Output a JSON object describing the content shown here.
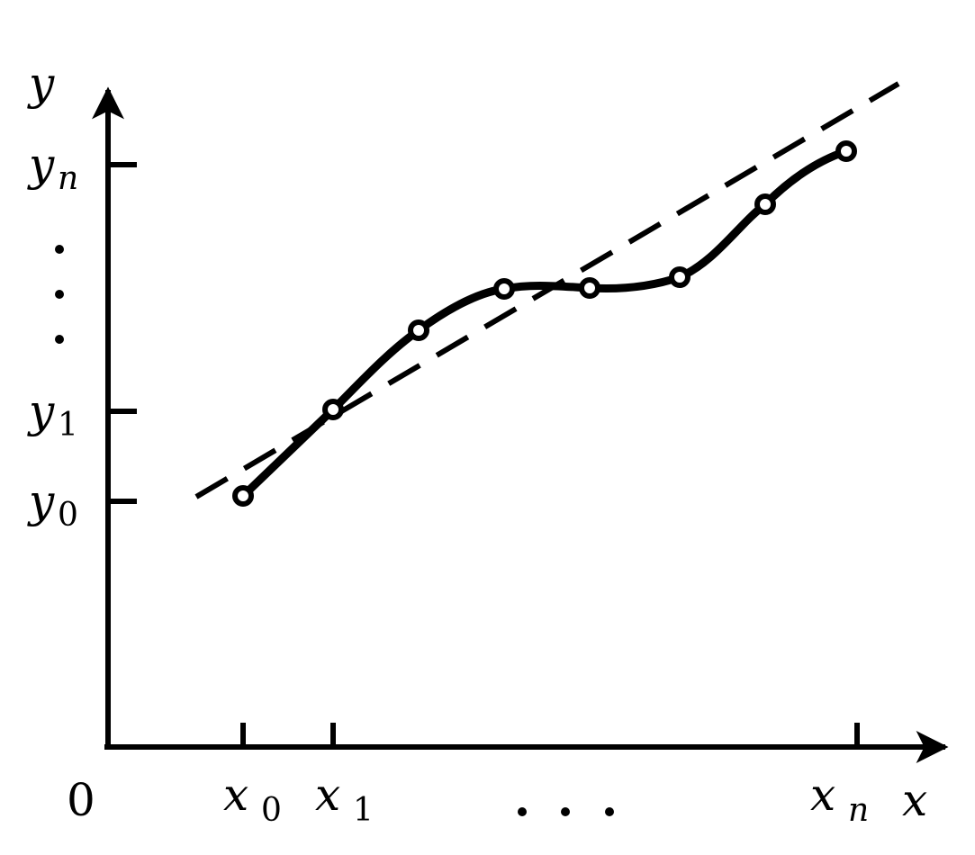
{
  "axes": {
    "x_label": "x",
    "y_label": "y",
    "origin_label": "0"
  },
  "x_ticks": [
    {
      "base": "x",
      "sub": "0"
    },
    {
      "base": "x",
      "sub": "1"
    },
    {
      "base": "x",
      "sub": "n"
    }
  ],
  "y_ticks": [
    {
      "base": "y",
      "sub": "0"
    },
    {
      "base": "y",
      "sub": "1"
    },
    {
      "base": "y",
      "sub": "n"
    }
  ],
  "x_ellipsis": ". . .",
  "y_ellipsis": "⋮",
  "colors": {
    "ink": "#000000",
    "point_fill": "#ffffff"
  }
}
